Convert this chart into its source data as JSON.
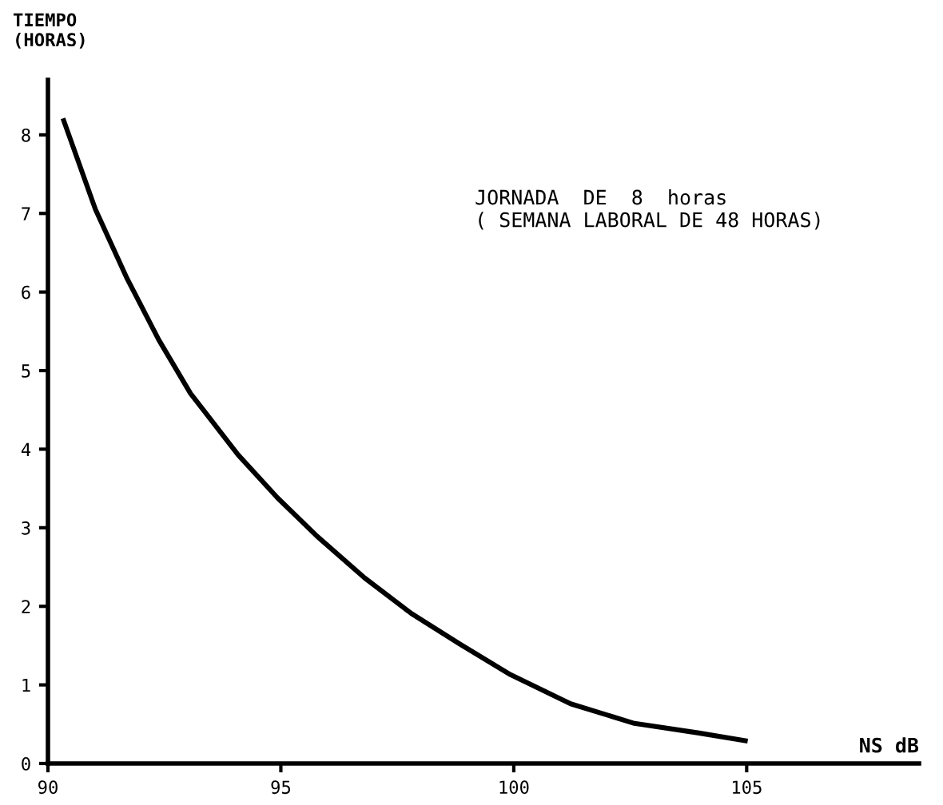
{
  "chart_data": {
    "type": "line",
    "xlabel": "NS dB",
    "ylabel": "TIEMPO\n(HORAS)",
    "annotations": [
      "JORNADA  DE  8  horas\n( SEMANA LABORAL DE 48 HORAS)"
    ],
    "series": [
      {
        "color": "#000000",
        "x": [
          90.34,
          91.02,
          91.7,
          92.38,
          93.06,
          94.08,
          94.93,
          95.78,
          96.8,
          97.8,
          98.84,
          99.93,
          101.22,
          102.59,
          103.95,
          104.97
        ],
        "values": [
          8.18,
          7.05,
          6.17,
          5.39,
          4.71,
          3.93,
          3.38,
          2.89,
          2.36,
          1.91,
          1.52,
          1.13,
          0.76,
          0.51,
          0.39,
          0.29
        ]
      }
    ],
    "xlim": [
      90,
      108.7
    ],
    "ylim": [
      0,
      8.7
    ],
    "xticks": [
      90,
      95,
      100,
      105
    ],
    "yticks": [
      0,
      1,
      2,
      3,
      4,
      5,
      6,
      7,
      8
    ],
    "grid": false,
    "legend": false,
    "marker": "none",
    "line_style": "solid"
  }
}
